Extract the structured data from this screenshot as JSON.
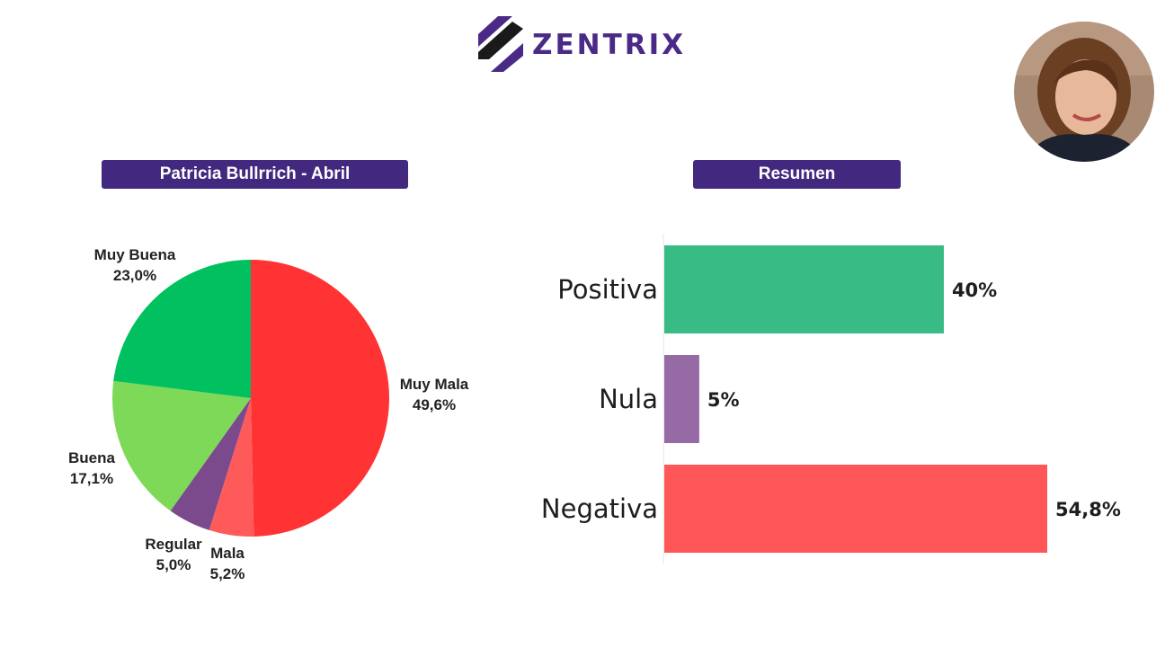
{
  "brand": {
    "name": "ZENTRIX",
    "color": "#4a2a86"
  },
  "avatar": {
    "icon": "person-portrait-icon"
  },
  "pie_title": "Patricia Bullrrich - Abril",
  "bar_title": "Resumen",
  "chart_data": [
    {
      "type": "pie",
      "title": "Patricia Bullrrich - Abril",
      "slices": [
        {
          "label": "Muy Mala",
          "value": 49.6,
          "display": "49,6%",
          "color": "#ff3333"
        },
        {
          "label": "Mala",
          "value": 5.2,
          "display": "5,2%",
          "color": "#ff5a5a"
        },
        {
          "label": "Regular",
          "value": 5.0,
          "display": "5,0%",
          "color": "#7a4a8c"
        },
        {
          "label": "Buena",
          "value": 17.1,
          "display": "17,1%",
          "color": "#7dd957"
        },
        {
          "label": "Muy Buena",
          "value": 23.0,
          "display": "23,0%",
          "color": "#00c060"
        }
      ]
    },
    {
      "type": "bar",
      "orientation": "horizontal",
      "title": "Resumen",
      "categories": [
        "Positiva",
        "Nula",
        "Negativa"
      ],
      "values": [
        40,
        5,
        54.8
      ],
      "display": [
        "40%",
        "5%",
        "54,8%"
      ],
      "colors": [
        "#38bb84",
        "#956aa5",
        "#ff5757"
      ]
    }
  ]
}
